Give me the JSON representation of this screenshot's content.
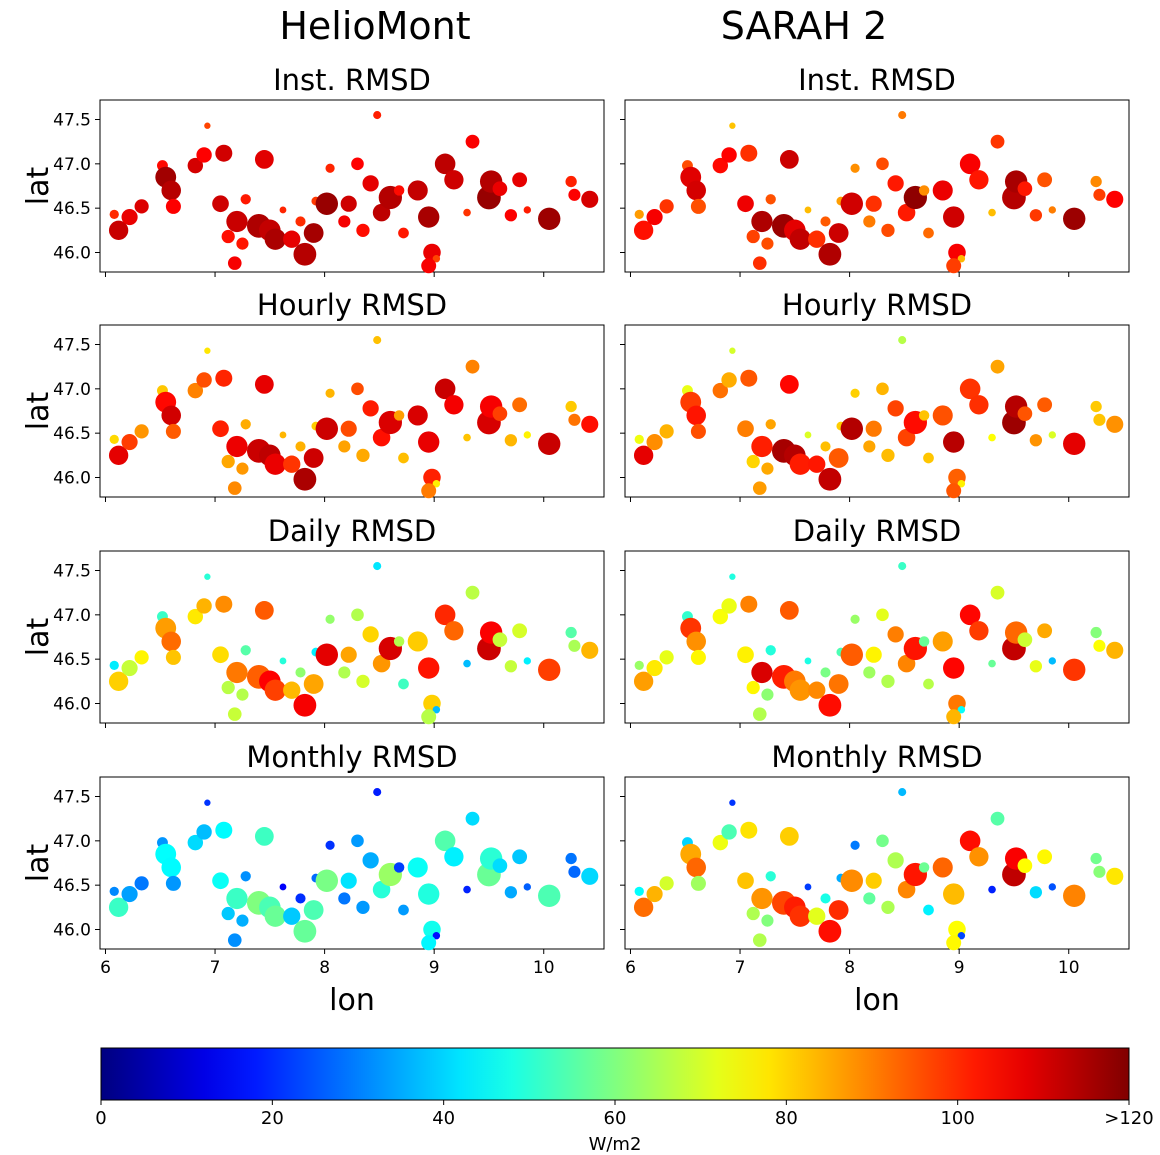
{
  "figure": {
    "columns": [
      "HelioMont",
      "SARAH 2"
    ],
    "panel_titles": [
      "Inst. RMSD",
      "Hourly RMSD",
      "Daily RMSD",
      "Monthly RMSD"
    ],
    "ylabel": "lat",
    "xlabel": "lon",
    "xticks": [
      "6",
      "7",
      "8",
      "9",
      "10"
    ],
    "yticks": [
      "46.0",
      "46.5",
      "47.0",
      "47.5"
    ],
    "colorbar": {
      "label": "W/m2",
      "ticks": [
        "0",
        "20",
        "40",
        "60",
        "80",
        "100",
        ">120"
      ],
      "colormap": "jet"
    }
  },
  "chart_data": {
    "type": "scatter",
    "description_of_values": "marker color = RMSD in W/m2 (0 to >120), marker size ~ RMSD",
    "xlim": [
      5.95,
      10.55
    ],
    "ylim": [
      45.78,
      47.72
    ],
    "stations": [
      {
        "lon": 6.08,
        "lat": 46.43
      },
      {
        "lon": 6.12,
        "lat": 46.25
      },
      {
        "lon": 6.22,
        "lat": 46.4
      },
      {
        "lon": 6.33,
        "lat": 46.52
      },
      {
        "lon": 6.52,
        "lat": 46.98
      },
      {
        "lon": 6.55,
        "lat": 46.85
      },
      {
        "lon": 6.6,
        "lat": 46.7
      },
      {
        "lon": 6.62,
        "lat": 46.52
      },
      {
        "lon": 6.82,
        "lat": 46.98
      },
      {
        "lon": 6.9,
        "lat": 47.1
      },
      {
        "lon": 6.93,
        "lat": 47.43
      },
      {
        "lon": 7.05,
        "lat": 46.55
      },
      {
        "lon": 7.08,
        "lat": 47.12
      },
      {
        "lon": 7.12,
        "lat": 46.18
      },
      {
        "lon": 7.2,
        "lat": 46.35
      },
      {
        "lon": 7.25,
        "lat": 46.1
      },
      {
        "lon": 7.18,
        "lat": 45.88
      },
      {
        "lon": 7.28,
        "lat": 46.6
      },
      {
        "lon": 7.4,
        "lat": 46.3
      },
      {
        "lon": 7.45,
        "lat": 47.05
      },
      {
        "lon": 7.5,
        "lat": 46.25
      },
      {
        "lon": 7.55,
        "lat": 46.15
      },
      {
        "lon": 7.62,
        "lat": 46.48
      },
      {
        "lon": 7.7,
        "lat": 46.15
      },
      {
        "lon": 7.82,
        "lat": 45.98
      },
      {
        "lon": 7.78,
        "lat": 46.35
      },
      {
        "lon": 7.9,
        "lat": 46.22
      },
      {
        "lon": 7.92,
        "lat": 46.58
      },
      {
        "lon": 8.02,
        "lat": 46.55
      },
      {
        "lon": 8.05,
        "lat": 46.95
      },
      {
        "lon": 8.18,
        "lat": 46.35
      },
      {
        "lon": 8.22,
        "lat": 46.55
      },
      {
        "lon": 8.3,
        "lat": 47.0
      },
      {
        "lon": 8.35,
        "lat": 46.25
      },
      {
        "lon": 8.42,
        "lat": 46.78
      },
      {
        "lon": 8.48,
        "lat": 47.55
      },
      {
        "lon": 8.52,
        "lat": 46.45
      },
      {
        "lon": 8.6,
        "lat": 46.62
      },
      {
        "lon": 8.68,
        "lat": 46.7
      },
      {
        "lon": 8.72,
        "lat": 46.22
      },
      {
        "lon": 8.85,
        "lat": 46.7
      },
      {
        "lon": 8.95,
        "lat": 46.4
      },
      {
        "lon": 8.98,
        "lat": 46.0
      },
      {
        "lon": 9.02,
        "lat": 45.93
      },
      {
        "lon": 8.95,
        "lat": 45.85
      },
      {
        "lon": 9.1,
        "lat": 47.0
      },
      {
        "lon": 9.18,
        "lat": 46.82
      },
      {
        "lon": 9.3,
        "lat": 46.45
      },
      {
        "lon": 9.35,
        "lat": 47.25
      },
      {
        "lon": 9.5,
        "lat": 46.62
      },
      {
        "lon": 9.52,
        "lat": 46.8
      },
      {
        "lon": 9.6,
        "lat": 46.72
      },
      {
        "lon": 9.7,
        "lat": 46.42
      },
      {
        "lon": 9.78,
        "lat": 46.82
      },
      {
        "lon": 9.85,
        "lat": 46.48
      },
      {
        "lon": 10.05,
        "lat": 46.38
      },
      {
        "lon": 10.25,
        "lat": 46.8
      },
      {
        "lon": 10.28,
        "lat": 46.65
      },
      {
        "lon": 10.42,
        "lat": 46.6
      }
    ],
    "panels": [
      {
        "column": "HelioMont",
        "title": "Inst. RMSD",
        "value_range_wm2": [
          95,
          120
        ]
      },
      {
        "column": "HelioMont",
        "title": "Hourly RMSD",
        "value_range_wm2": [
          70,
          120
        ]
      },
      {
        "column": "HelioMont",
        "title": "Daily RMSD",
        "value_range_wm2": [
          30,
          115
        ]
      },
      {
        "column": "HelioMont",
        "title": "Monthly RMSD",
        "value_range_wm2": [
          10,
          65
        ]
      },
      {
        "column": "SARAH 2",
        "title": "Inst. RMSD",
        "value_range_wm2": [
          80,
          120
        ]
      },
      {
        "column": "SARAH 2",
        "title": "Hourly RMSD",
        "value_range_wm2": [
          60,
          120
        ]
      },
      {
        "column": "SARAH 2",
        "title": "Daily RMSD",
        "value_range_wm2": [
          30,
          120
        ]
      },
      {
        "column": "SARAH 2",
        "title": "Monthly RMSD",
        "value_range_wm2": [
          10,
          120
        ]
      }
    ]
  }
}
